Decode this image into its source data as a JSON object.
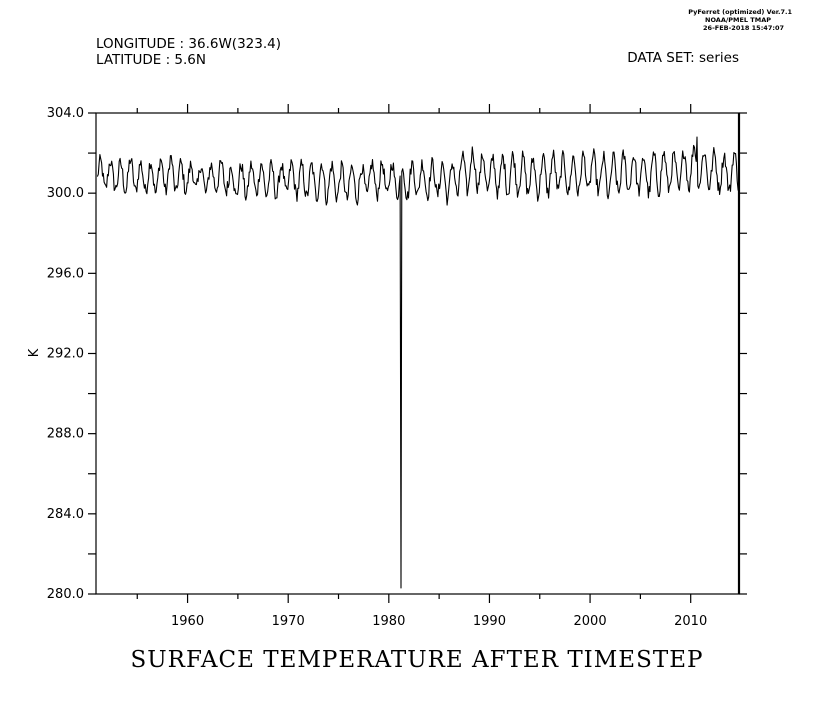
{
  "header": {
    "longitude_line": "LONGITUDE : 36.6W(323.4)",
    "latitude_line": "LATITUDE : 5.6N",
    "dataset_line": "DATA SET: series",
    "stamp_line1": "PyFerret (optimized) Ver.7.1",
    "stamp_line2": "NOAA/PMEL TMAP",
    "stamp_line3": "26-FEB-2018 15:47:07"
  },
  "chart_data": {
    "type": "line",
    "title": "SURFACE TEMPERATURE AFTER TIMESTEP",
    "xlabel": "",
    "ylabel": "K",
    "xlim": [
      1950.9,
      2014.8
    ],
    "ylim": [
      280.0,
      304.0
    ],
    "x_ticks": [
      "1960",
      "1970",
      "1980",
      "1990",
      "2000",
      "2010"
    ],
    "y_ticks": [
      "304.0",
      "300.0",
      "296.0",
      "292.0",
      "288.0",
      "284.0",
      "280.0"
    ],
    "grid": false,
    "series": [
      {
        "color": "#000000",
        "sampling": "monthly",
        "start_year": 1951,
        "annual_mean": [
          300.9,
          300.9,
          300.8,
          300.9,
          300.8,
          300.8,
          300.9,
          300.9,
          300.8,
          300.8,
          300.7,
          300.8,
          300.8,
          300.6,
          300.6,
          300.7,
          300.7,
          300.6,
          300.7,
          300.7,
          300.6,
          300.6,
          300.6,
          300.6,
          300.5,
          300.5,
          300.6,
          300.7,
          300.7,
          300.7,
          300.6,
          300.7,
          300.7,
          300.7,
          300.6,
          300.7,
          301.0,
          301.2,
          301.0,
          300.9,
          300.9,
          301.0,
          300.9,
          300.8,
          300.9,
          301.0,
          300.9,
          300.9,
          301.0,
          301.0,
          300.8,
          300.9,
          301.0,
          301.0,
          300.9,
          301.0,
          301.1,
          301.0,
          301.2,
          301.4,
          301.2,
          301.1,
          301.0,
          301.1
        ],
        "annual_amplitude": [
          0.7,
          0.7,
          0.7,
          0.8,
          0.7,
          0.8,
          0.8,
          0.9,
          0.7,
          0.6,
          0.7,
          0.6,
          0.7,
          0.8,
          0.8,
          0.7,
          0.8,
          0.8,
          0.7,
          0.8,
          0.8,
          0.8,
          0.9,
          0.8,
          0.8,
          0.8,
          0.7,
          0.8,
          0.8,
          0.8,
          0.8,
          0.8,
          0.8,
          0.8,
          0.9,
          0.8,
          0.9,
          0.9,
          0.9,
          0.9,
          0.9,
          0.9,
          0.9,
          0.9,
          0.9,
          0.9,
          0.9,
          0.9,
          0.9,
          0.9,
          1.0,
          0.9,
          0.9,
          0.9,
          0.9,
          0.9,
          0.9,
          0.9,
          0.9,
          1.0,
          0.9,
          0.9,
          0.9,
          0.9
        ],
        "min_point": {
          "x": 1981.2,
          "y": 280.3
        },
        "max_point": {
          "x": 2010.6,
          "y": 302.8
        }
      }
    ]
  }
}
